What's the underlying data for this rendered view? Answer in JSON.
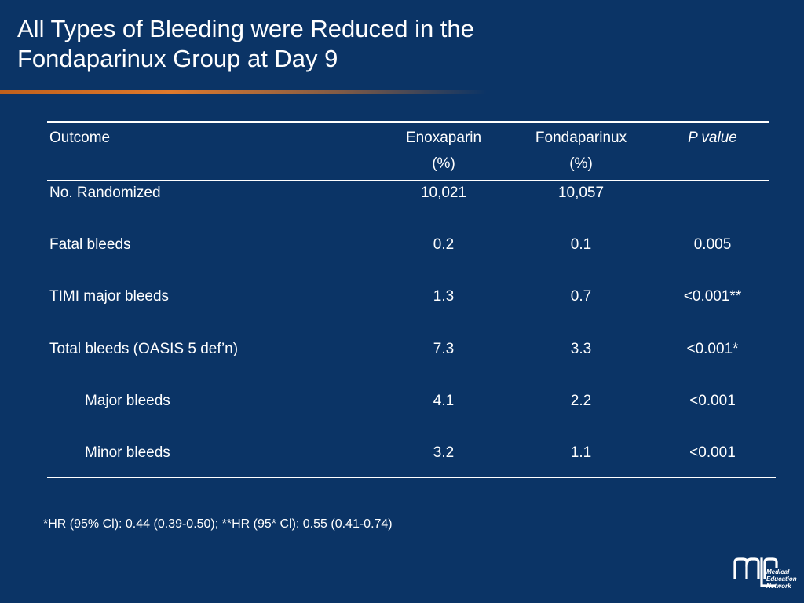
{
  "title": {
    "line1": "All Types of Bleeding were Reduced in the",
    "line2": "Fondaparinux Group at Day 9"
  },
  "table": {
    "headers": {
      "outcome": "Outcome",
      "enoxaparin": "Enoxaparin",
      "enoxaparin_unit": "(%)",
      "fondaparinux": "Fondaparinux",
      "fondaparinux_unit": "(%)",
      "pvalue": "P value"
    },
    "rows": [
      {
        "outcome": "No. Randomized",
        "enoxaparin": "10,021",
        "fondaparinux": "10,057",
        "pvalue": ""
      },
      {
        "outcome": "Fatal bleeds",
        "enoxaparin": "0.2",
        "fondaparinux": "0.1",
        "pvalue": "0.005"
      },
      {
        "outcome": "TIMI major bleeds",
        "enoxaparin": "1.3",
        "fondaparinux": "0.7",
        "pvalue": "<0.001**"
      },
      {
        "outcome": "Total bleeds (OASIS 5 def’n)",
        "enoxaparin": "7.3",
        "fondaparinux": "3.3",
        "pvalue": "<0.001*"
      },
      {
        "outcome": "Major bleeds",
        "enoxaparin": "4.1",
        "fondaparinux": "2.2",
        "pvalue": "<0.001"
      },
      {
        "outcome": "Minor bleeds",
        "enoxaparin": "3.2",
        "fondaparinux": "1.1",
        "pvalue": "<0.001"
      }
    ]
  },
  "footnote": "*HR (95% Cl): 0.44 (0.39-0.50); **HR (95* Cl): 0.55 (0.41-0.74)",
  "logo": {
    "line1": "Medical",
    "line2": "Education",
    "line3": "Network"
  },
  "colors": {
    "background": "#0b3466",
    "accent": "#e07a2c",
    "text": "#ffffff"
  }
}
